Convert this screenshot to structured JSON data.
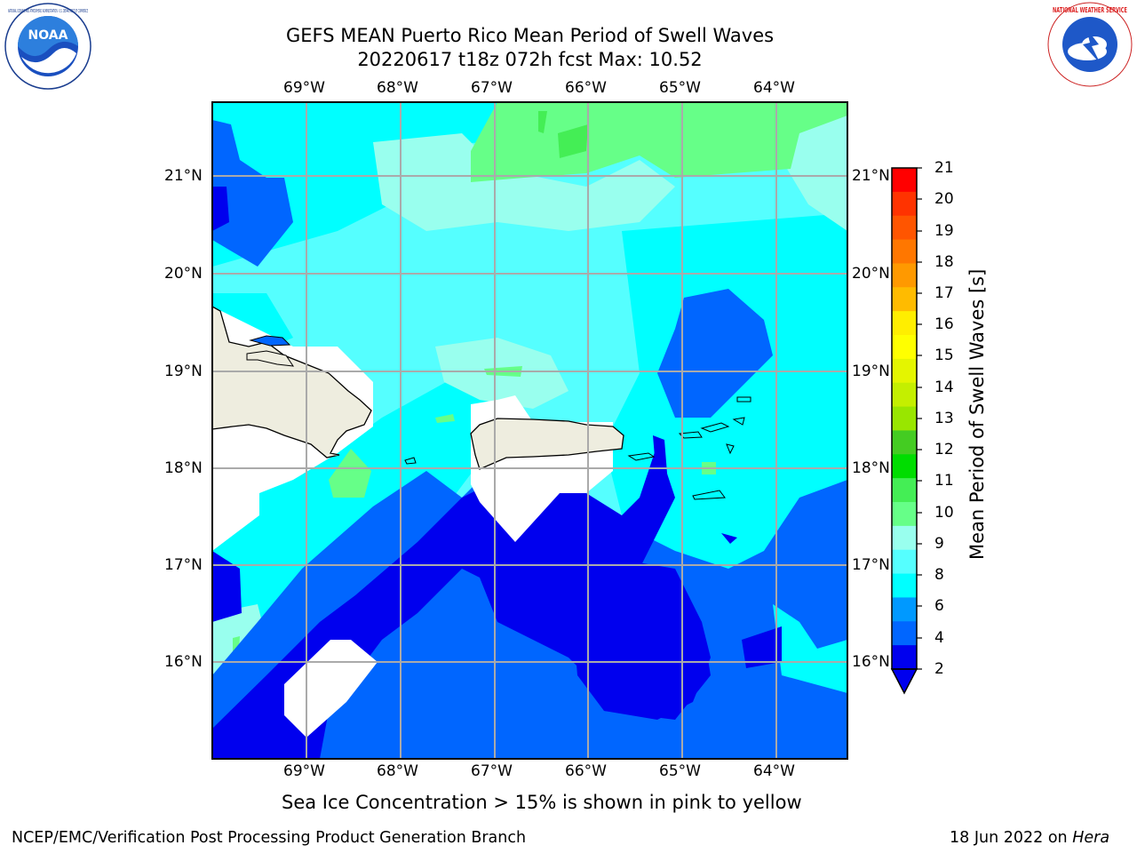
{
  "header": {
    "title_line1": "GEFS MEAN Puerto Rico Mean Period of Swell Waves",
    "title_line2": "20220617 t18z 072h fcst   Max: 10.52"
  },
  "logos": {
    "left": "NOAA",
    "left_ring_text": "NATIONAL OCEANIC AND ATMOSPHERIC ADMINISTRATION · U.S. DEPARTMENT OF COMMERCE",
    "right_ring_text": "NATIONAL WEATHER SERVICE"
  },
  "map": {
    "lon_labels": [
      "69°W",
      "68°W",
      "67°W",
      "66°W",
      "65°W",
      "64°W"
    ],
    "lat_labels": [
      "21°N",
      "20°N",
      "19°N",
      "18°N",
      "17°N",
      "16°N"
    ],
    "land_color": "#eeeddf"
  },
  "colorbar": {
    "title": "Mean Period of Swell Waves [s]",
    "ticks": [
      "21",
      "20",
      "19",
      "18",
      "17",
      "16",
      "15",
      "14",
      "13",
      "12",
      "11",
      "10",
      "9",
      "8",
      "6",
      "4",
      "2"
    ],
    "colors": [
      "#ff0000",
      "#ff3300",
      "#ff5500",
      "#ff7700",
      "#ff9900",
      "#ffbb00",
      "#ffee00",
      "#ffff00",
      "#e4f500",
      "#c4ef00",
      "#99e600",
      "#44cc22",
      "#00dd00",
      "#44ee55",
      "#66ff88",
      "#99ffee",
      "#55ffff",
      "#00ffff",
      "#0099ff",
      "#0066ff",
      "#0000ee"
    ]
  },
  "caption": "Sea Ice Concentration > 15% is shown in pink to yellow",
  "footer": {
    "left": "NCEP/EMC/Verification Post Processing Product Generation Branch",
    "date": "18 Jun 2022 on ",
    "machine": "Hera"
  }
}
